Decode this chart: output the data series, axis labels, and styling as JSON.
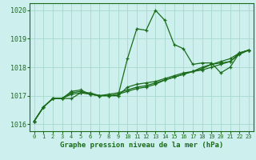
{
  "xlabel": "Graphe pression niveau de la mer (hPa)",
  "background_color": "#cdf0ee",
  "grid_color": "#a8d8cc",
  "line_color": "#1a6b1a",
  "ylim": [
    1015.75,
    1020.25
  ],
  "xlim": [
    -0.5,
    23.5
  ],
  "yticks": [
    1016,
    1017,
    1018,
    1019,
    1020
  ],
  "xtick_labels": [
    "0",
    "1",
    "2",
    "3",
    "4",
    "5",
    "6",
    "7",
    "8",
    "9",
    "10",
    "11",
    "12",
    "13",
    "14",
    "15",
    "16",
    "17",
    "18",
    "19",
    "20",
    "21",
    "22",
    "23"
  ],
  "series": [
    [
      1016.1,
      1016.6,
      1016.9,
      1016.9,
      1016.9,
      1017.1,
      1017.1,
      1017.0,
      1017.0,
      1017.0,
      1018.3,
      1019.35,
      1019.3,
      1020.0,
      1019.65,
      1018.8,
      1018.65,
      1018.1,
      1018.15,
      1018.15,
      1017.8,
      1018.0,
      1018.5,
      1018.6
    ],
    [
      1016.1,
      1016.6,
      1016.9,
      1016.9,
      1017.15,
      1017.2,
      1017.05,
      1017.0,
      1017.0,
      1017.0,
      1017.3,
      1017.4,
      1017.45,
      1017.5,
      1017.6,
      1017.7,
      1017.8,
      1017.85,
      1017.9,
      1018.0,
      1018.1,
      1018.2,
      1018.5,
      1018.6
    ],
    [
      1016.1,
      1016.6,
      1016.9,
      1016.9,
      1017.1,
      1017.15,
      1017.05,
      1017.0,
      1017.0,
      1017.05,
      1017.15,
      1017.25,
      1017.3,
      1017.4,
      1017.55,
      1017.65,
      1017.75,
      1017.85,
      1018.0,
      1018.1,
      1018.15,
      1018.2,
      1018.45,
      1018.6
    ],
    [
      1016.1,
      1016.6,
      1016.9,
      1016.9,
      1017.05,
      1017.1,
      1017.05,
      1017.0,
      1017.05,
      1017.1,
      1017.2,
      1017.3,
      1017.35,
      1017.45,
      1017.55,
      1017.65,
      1017.75,
      1017.85,
      1017.95,
      1018.1,
      1018.2,
      1018.3,
      1018.5,
      1018.6
    ]
  ]
}
